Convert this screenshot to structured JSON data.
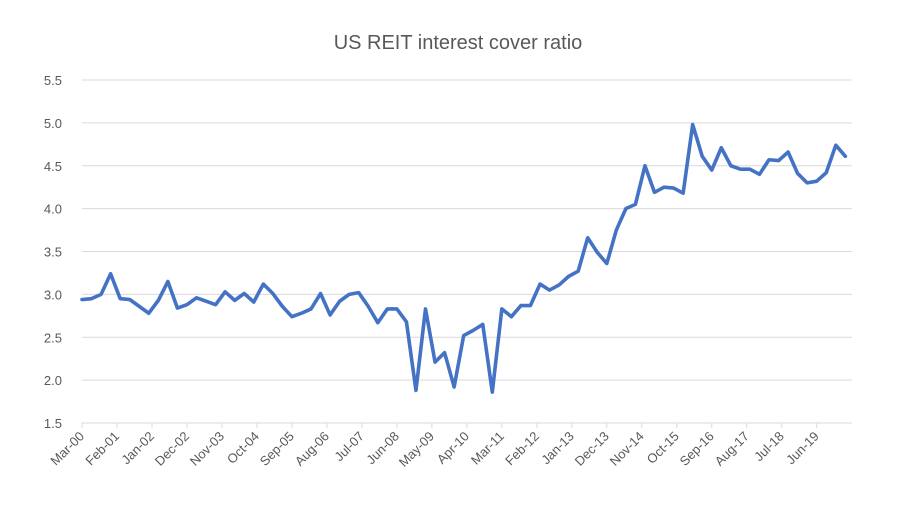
{
  "chart_data": {
    "type": "line",
    "title": "US REIT interest cover ratio",
    "xlabel": "",
    "ylabel": "",
    "ylim": [
      1.5,
      5.5
    ],
    "yticks": [
      "1.5",
      "2.0",
      "2.5",
      "3.0",
      "3.5",
      "4.0",
      "4.5",
      "5.0",
      "5.5"
    ],
    "xlim": [
      "2000-03",
      "2020-05"
    ],
    "xtick_labels": [
      "Mar-00",
      "Feb-01",
      "Jan-02",
      "Dec-02",
      "Nov-03",
      "Oct-04",
      "Sep-05",
      "Aug-06",
      "Jul-07",
      "Jun-08",
      "May-09",
      "Apr-10",
      "Mar-11",
      "Feb-12",
      "Jan-13",
      "Dec-13",
      "Nov-14",
      "Oct-15",
      "Sep-16",
      "Aug-17",
      "Jul-18",
      "Jun-19"
    ],
    "grid": "horizontal",
    "legend": "none",
    "color": "#4472C4",
    "x": [
      "2000-03",
      "2000-06",
      "2000-09",
      "2000-12",
      "2001-03",
      "2001-06",
      "2001-09",
      "2001-12",
      "2002-03",
      "2002-06",
      "2002-09",
      "2002-12",
      "2003-03",
      "2003-06",
      "2003-09",
      "2003-12",
      "2004-03",
      "2004-06",
      "2004-09",
      "2004-12",
      "2005-03",
      "2005-06",
      "2005-09",
      "2005-12",
      "2006-03",
      "2006-06",
      "2006-09",
      "2006-12",
      "2007-03",
      "2007-06",
      "2007-09",
      "2007-12",
      "2008-03",
      "2008-06",
      "2008-09",
      "2008-12",
      "2009-03",
      "2009-06",
      "2009-09",
      "2009-12",
      "2010-03",
      "2010-06",
      "2010-09",
      "2010-12",
      "2011-03",
      "2011-06",
      "2011-09",
      "2011-12",
      "2012-03",
      "2012-06",
      "2012-09",
      "2012-12",
      "2013-03",
      "2013-06",
      "2013-09",
      "2013-12",
      "2014-03",
      "2014-06",
      "2014-09",
      "2014-12",
      "2015-03",
      "2015-06",
      "2015-09",
      "2015-12",
      "2016-03",
      "2016-06",
      "2016-09",
      "2016-12",
      "2017-03",
      "2017-06",
      "2017-09",
      "2017-12",
      "2018-03",
      "2018-06",
      "2018-09",
      "2018-12",
      "2019-03",
      "2019-06",
      "2019-09",
      "2019-12",
      "2020-03"
    ],
    "values": [
      2.94,
      2.95,
      3.0,
      3.24,
      2.95,
      2.94,
      2.86,
      2.78,
      2.93,
      3.15,
      2.84,
      2.88,
      2.96,
      2.92,
      2.88,
      3.03,
      2.93,
      3.01,
      2.91,
      3.12,
      3.01,
      2.86,
      2.74,
      2.78,
      2.83,
      3.01,
      2.76,
      2.92,
      3.0,
      3.02,
      2.86,
      2.67,
      2.83,
      2.83,
      2.68,
      1.88,
      2.83,
      2.21,
      2.32,
      1.92,
      2.52,
      2.58,
      2.65,
      1.86,
      2.83,
      2.74,
      2.87,
      2.87,
      3.12,
      3.05,
      3.11,
      3.21,
      3.27,
      3.66,
      3.49,
      3.36,
      3.75,
      4.0,
      4.05,
      4.5,
      4.19,
      4.25,
      4.24,
      4.18,
      4.98,
      4.61,
      4.45,
      4.71,
      4.5,
      4.46,
      4.46,
      4.4,
      4.57,
      4.56,
      4.66,
      4.41,
      4.3,
      4.32,
      4.42,
      4.74,
      4.61
    ]
  }
}
